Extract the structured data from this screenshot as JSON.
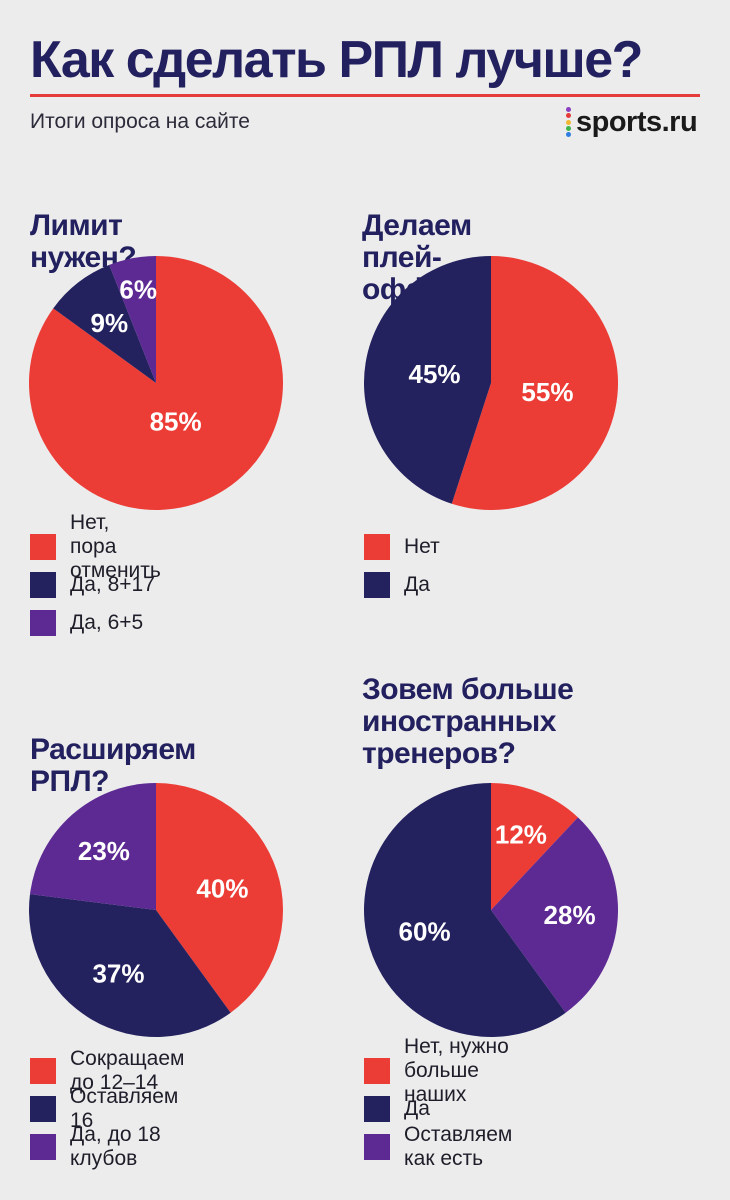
{
  "header": {
    "title": "Как сделать РПЛ лучше?",
    "subtitle": "Итоги опроса на сайте",
    "logo_text": "sports.ru",
    "accent_color": "#e63b3b"
  },
  "colors": {
    "red": "#ec3c36",
    "navy": "#23215e",
    "purple": "#5d2a94"
  },
  "chart_data": [
    {
      "type": "pie",
      "title": "Лимит нужен?",
      "slices": [
        {
          "label": "Нет, пора отменить",
          "value": 85,
          "text": "85%",
          "color": "#ec3c36"
        },
        {
          "label": "Да, 8+17",
          "value": 9,
          "text": "9%",
          "color": "#23215e"
        },
        {
          "label": "Да, 6+5",
          "value": 6,
          "text": "6%",
          "color": "#5d2a94"
        }
      ]
    },
    {
      "type": "pie",
      "title": "Делаем плей-офф?",
      "slices": [
        {
          "label": "Нет",
          "value": 55,
          "text": "55%",
          "color": "#ec3c36"
        },
        {
          "label": "Да",
          "value": 45,
          "text": "45%",
          "color": "#23215e"
        }
      ]
    },
    {
      "type": "pie",
      "title": "Расширяем РПЛ?",
      "slices": [
        {
          "label": "Сокращаем до 12–14",
          "value": 40,
          "text": "40%",
          "color": "#ec3c36"
        },
        {
          "label": "Оставляем 16",
          "value": 37,
          "text": "37%",
          "color": "#23215e"
        },
        {
          "label": "Да, до 18 клубов",
          "value": 23,
          "text": "23%",
          "color": "#5d2a94"
        }
      ]
    },
    {
      "type": "pie",
      "title": "Зовем больше иностранных тренеров?",
      "slices": [
        {
          "label": "Нет, нужно больше наших",
          "value": 12,
          "text": "12%",
          "color": "#ec3c36"
        },
        {
          "label": "Оставляем как есть",
          "value": 28,
          "text": "28%",
          "color": "#5d2a94"
        },
        {
          "label": "Да",
          "value": 60,
          "text": "60%",
          "color": "#23215e"
        }
      ],
      "legend_order": [
        0,
        2,
        1
      ]
    }
  ]
}
